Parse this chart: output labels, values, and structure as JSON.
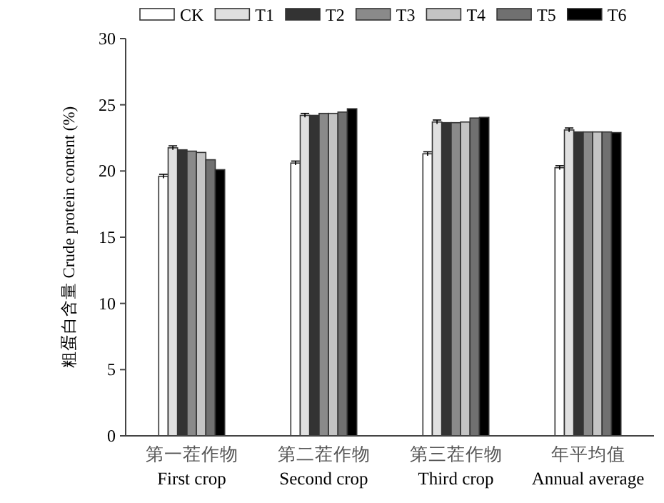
{
  "chart_data": {
    "type": "bar",
    "ylabel": "粗蛋白含量 Crude protein content (%)",
    "categories": [
      "第一茬作物\nFirst crop",
      "第二茬作物\nSecond crop",
      "第三茬作物\nThird crop",
      "年平均值\nAnnual average"
    ],
    "ylim": [
      0,
      30
    ],
    "yticks": [
      0,
      5,
      10,
      15,
      20,
      25,
      30
    ],
    "grid": false,
    "legend": "top",
    "series": [
      {
        "name": "CK",
        "color": "#ffffff",
        "values": [
          19.6,
          20.6,
          21.3,
          20.25
        ],
        "errors": [
          0.15,
          0.15,
          0.15,
          0.15
        ]
      },
      {
        "name": "T1",
        "color": "#e0e0e0",
        "values": [
          21.75,
          24.2,
          23.7,
          23.1
        ],
        "errors": [
          0.15,
          0.15,
          0.15,
          0.15
        ]
      },
      {
        "name": "T2",
        "color": "#333333",
        "values": [
          21.6,
          24.2,
          23.65,
          22.95
        ]
      },
      {
        "name": "T3",
        "color": "#8a8a8a",
        "values": [
          21.5,
          24.35,
          23.65,
          22.95
        ]
      },
      {
        "name": "T4",
        "color": "#c4c4c4",
        "values": [
          21.4,
          24.35,
          23.7,
          22.95
        ]
      },
      {
        "name": "T5",
        "color": "#707070",
        "values": [
          20.85,
          24.45,
          24.0,
          22.95
        ]
      },
      {
        "name": "T6",
        "color": "#000000",
        "values": [
          20.1,
          24.7,
          24.05,
          22.9
        ]
      }
    ]
  }
}
